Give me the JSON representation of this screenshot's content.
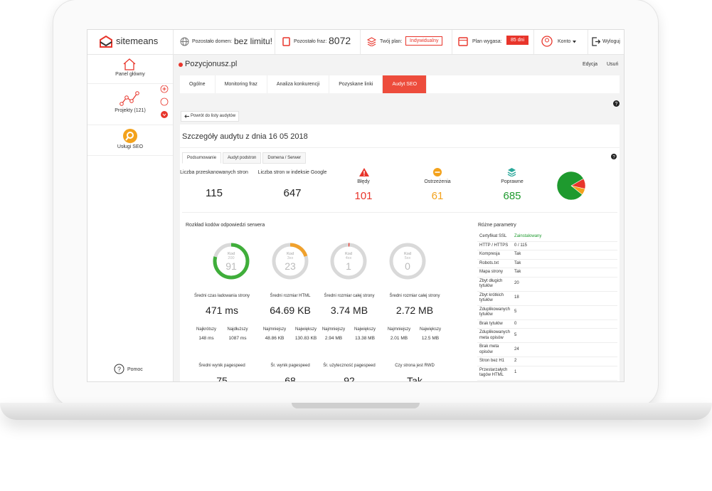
{
  "header": {
    "logo": "sitemeans",
    "domains_label": "Pozostało domen:",
    "domains_value": "bez limitu!",
    "phrases_label": "Pozostało fraz:",
    "phrases_value": "8072",
    "plan_label": "Twój plan:",
    "plan_value": "Indywidualny",
    "expiry_label": "Plan wygasa:",
    "expiry_value": "85 dni",
    "account": "Konto",
    "logout": "Wyloguj"
  },
  "sidebar": {
    "items": [
      "Panel główny",
      "Projekty (121)",
      "Usługi SEO"
    ],
    "help": "Pomoc"
  },
  "project": {
    "name": "Pozycjonusz.pl",
    "actions": [
      "Edycja",
      "Usuń"
    ]
  },
  "tabs": {
    "items": [
      "Ogólne",
      "Monitoring fraz",
      "Analiza konkurencji",
      "Pozyskane linki",
      "Audyt SEO"
    ],
    "active": 4
  },
  "back_button": "Powrót do listy audytów",
  "audit": {
    "title": "Szczegóły audytu z dnia 16 05 2018",
    "subtabs": {
      "items": [
        "Podsumowanie",
        "Audyt podstron",
        "Domena / Serwer"
      ],
      "active": 0
    },
    "summary": [
      {
        "label": "Liczba przeskanowanych stron",
        "value": 115
      },
      {
        "label": "Liczba stron w indeksie Google",
        "value": 647
      },
      {
        "label": "Błędy",
        "value": 101,
        "color": "#e8352b"
      },
      {
        "label": "Ostrzeżenia",
        "value": 61,
        "color": "#f3a21c"
      },
      {
        "label": "Poprawne",
        "value": 685,
        "color": "#1e9a2e"
      }
    ],
    "codes_title": "Rozkład kodów odpowiedzi serwera",
    "codes": [
      {
        "prefix": "Kod",
        "code": "200",
        "count": 91,
        "color": "#3fae3a"
      },
      {
        "prefix": "Kod",
        "code": "3xx",
        "count": 23,
        "color": "#f0a12c"
      },
      {
        "prefix": "Kod",
        "code": "4xx",
        "count": 1,
        "color": "#e8352b"
      },
      {
        "prefix": "Kod",
        "code": "5xx",
        "count": 0,
        "color": "#888888"
      }
    ],
    "metrics": [
      {
        "label": "Średni czas ładowania strony",
        "value": "471 ms",
        "min_label": "Najkrótszy",
        "min": "148 ms",
        "max_label": "Najdłuższy",
        "max": "1087 ms"
      },
      {
        "label": "Średni rozmiar HTML",
        "value": "64.69 KB",
        "min_label": "Najmniejszy",
        "min": "48.86 KB",
        "max_label": "Największy",
        "max": "130.83 KB"
      },
      {
        "label": "Średni rozmiar całej strony",
        "value": "3.74 MB",
        "min_label": "Najmniejszy",
        "min": "2.94 MB",
        "max_label": "Największy",
        "max": "13.38 MB"
      },
      {
        "label": "Średni rozmiar całej strony",
        "value": "2.72 MB",
        "min_label": "Najmniejszy",
        "min": "2.01 MB",
        "max_label": "Największy",
        "max": "12.5 MB"
      }
    ],
    "bottom_metrics": [
      {
        "label": "Średni wynik pagespeed",
        "value": "75"
      },
      {
        "label": "Śr. wynik pagespeed",
        "value": "68"
      },
      {
        "label": "Śr. użyteczność pagespeed",
        "value": "92"
      },
      {
        "label": "Czy strona jest RWD",
        "value": "Tak"
      }
    ],
    "params_title": "Różne parametry",
    "params": [
      [
        "Certyfikat SSL",
        "Zainstalowany"
      ],
      [
        "HTTP / HTTPS",
        "0 / 115"
      ],
      [
        "Kompresja",
        "Tak"
      ],
      [
        "Robots.txt",
        "Tak"
      ],
      [
        "Mapa strony",
        "Tak"
      ],
      [
        "Zbyt długich tytułów",
        "20"
      ],
      [
        "Zbyt krótkich tytułów",
        "18"
      ],
      [
        "Zduplikowanych tytułów",
        "5"
      ],
      [
        "Brak tytułów",
        "0"
      ],
      [
        "Zduplikowanych meta opisów",
        "5"
      ],
      [
        "Brak meta opisów",
        "24"
      ],
      [
        "Stron bez H1",
        "2"
      ],
      [
        "Przestarzałych tagów HTML",
        "1"
      ]
    ]
  }
}
